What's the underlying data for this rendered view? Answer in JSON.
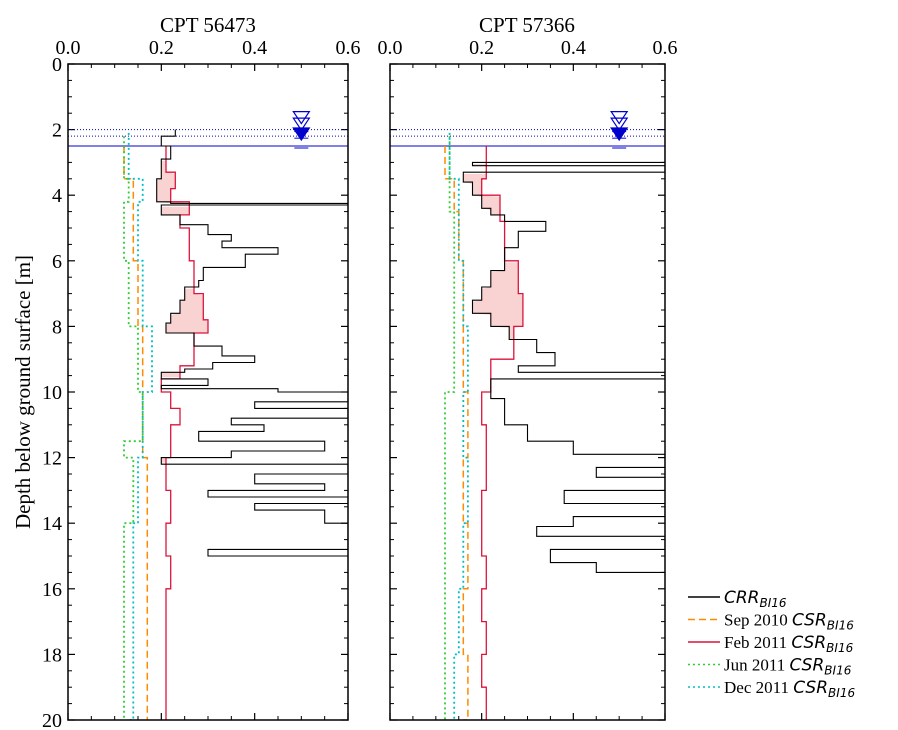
{
  "chart_data": {
    "type": "line",
    "ylabel": "Depth below ground surface [m]",
    "ylim": [
      20,
      0
    ],
    "xlim": [
      0,
      0.6
    ],
    "x_ticks": [
      "0.0",
      "0.2",
      "0.4",
      "0.6"
    ],
    "y_ticks": [
      "0",
      "2",
      "4",
      "6",
      "8",
      "10",
      "12",
      "14",
      "16",
      "18",
      "20"
    ],
    "legend_position": "bottom-right",
    "colors": {
      "crr": "#000000",
      "sep2010": "#ff8c00",
      "feb2011": "#dc143c",
      "jun2011": "#32cd32",
      "dec2011": "#00bfc4",
      "water_table": "#0000cd",
      "shade": "#f9d2d2"
    },
    "legend": [
      {
        "key": "crr",
        "prefix": "",
        "main": "CRR",
        "sub": "BI16",
        "dash": ""
      },
      {
        "key": "sep2010",
        "prefix": "Sep 2010 ",
        "main": "CSR",
        "sub": "BI16",
        "dash": "7,4"
      },
      {
        "key": "feb2011",
        "prefix": "Feb 2011 ",
        "main": "CSR",
        "sub": "BI16",
        "dash": ""
      },
      {
        "key": "jun2011",
        "prefix": "Jun 2011 ",
        "main": "CSR",
        "sub": "BI16",
        "dash": "2,3"
      },
      {
        "key": "dec2011",
        "prefix": "Dec 2011 ",
        "main": "CSR",
        "sub": "BI16",
        "dash": "2,3"
      }
    ],
    "panels": [
      {
        "title": "CPT 56473",
        "water_tables": [
          2.0,
          2.2,
          2.5
        ],
        "series": {
          "crr": [
            [
              0.23,
              2.0
            ],
            [
              0.2,
              2.2
            ],
            [
              0.22,
              2.5
            ],
            [
              0.2,
              2.9
            ],
            [
              0.19,
              3.5
            ],
            [
              0.19,
              4.0
            ],
            [
              0.22,
              4.2
            ],
            [
              0.6,
              4.25
            ],
            [
              0.2,
              4.3
            ],
            [
              0.24,
              4.6
            ],
            [
              0.3,
              4.9
            ],
            [
              0.35,
              5.2
            ],
            [
              0.33,
              5.4
            ],
            [
              0.45,
              5.6
            ],
            [
              0.38,
              5.8
            ],
            [
              0.29,
              6.2
            ],
            [
              0.28,
              6.6
            ],
            [
              0.25,
              6.8
            ],
            [
              0.24,
              7.2
            ],
            [
              0.22,
              7.6
            ],
            [
              0.21,
              7.9
            ],
            [
              0.27,
              8.2
            ],
            [
              0.33,
              8.6
            ],
            [
              0.4,
              8.9
            ],
            [
              0.31,
              9.1
            ],
            [
              0.25,
              9.3
            ],
            [
              0.2,
              9.4
            ],
            [
              0.3,
              9.6
            ],
            [
              0.2,
              9.8
            ],
            [
              0.45,
              9.9
            ],
            [
              0.6,
              10.0
            ],
            [
              0.4,
              10.3
            ],
            [
              0.6,
              10.5
            ],
            [
              0.35,
              10.8
            ],
            [
              0.42,
              11.0
            ],
            [
              0.28,
              11.2
            ],
            [
              0.55,
              11.5
            ],
            [
              0.35,
              11.8
            ],
            [
              0.2,
              12.0
            ],
            [
              0.6,
              12.2
            ],
            [
              0.4,
              12.5
            ],
            [
              0.55,
              12.8
            ],
            [
              0.3,
              13.0
            ],
            [
              0.6,
              13.2
            ],
            [
              0.4,
              13.4
            ],
            [
              0.55,
              13.6
            ],
            [
              0.6,
              14.0
            ],
            [
              0.3,
              14.8
            ],
            [
              0.6,
              15.0
            ]
          ],
          "sep2010": [
            [
              0.12,
              2.5
            ],
            [
              0.14,
              3.5
            ],
            [
              0.14,
              4.2
            ],
            [
              0.15,
              6.0
            ],
            [
              0.16,
              8.0
            ],
            [
              0.16,
              10.0
            ],
            [
              0.17,
              12.0
            ],
            [
              0.17,
              14.0
            ],
            [
              0.17,
              16.0
            ],
            [
              0.17,
              18.0
            ],
            [
              0.17,
              20.0
            ]
          ],
          "feb2011": [
            [
              0.21,
              2.5
            ],
            [
              0.23,
              3.3
            ],
            [
              0.22,
              3.8
            ],
            [
              0.26,
              4.2
            ],
            [
              0.24,
              4.6
            ],
            [
              0.26,
              5.0
            ],
            [
              0.27,
              6.0
            ],
            [
              0.29,
              7.0
            ],
            [
              0.3,
              7.8
            ],
            [
              0.27,
              8.2
            ],
            [
              0.24,
              9.2
            ],
            [
              0.2,
              9.6
            ],
            [
              0.22,
              10.0
            ],
            [
              0.24,
              10.5
            ],
            [
              0.22,
              11.0
            ],
            [
              0.21,
              12.0
            ],
            [
              0.22,
              13.0
            ],
            [
              0.21,
              14.0
            ],
            [
              0.22,
              15.0
            ],
            [
              0.21,
              16.0
            ],
            [
              0.21,
              17.0
            ],
            [
              0.21,
              18.0
            ],
            [
              0.21,
              19.0
            ],
            [
              0.21,
              20.0
            ]
          ],
          "jun2011": [
            [
              0.12,
              2.2
            ],
            [
              0.13,
              3.5
            ],
            [
              0.12,
              4.2
            ],
            [
              0.13,
              6.0
            ],
            [
              0.15,
              8.0
            ],
            [
              0.16,
              10.0
            ],
            [
              0.12,
              11.5
            ],
            [
              0.14,
              12.0
            ],
            [
              0.12,
              14.0
            ],
            [
              0.12,
              16.0
            ],
            [
              0.12,
              18.0
            ],
            [
              0.12,
              20.0
            ]
          ],
          "dec2011": [
            [
              0.13,
              2.1
            ],
            [
              0.16,
              3.5
            ],
            [
              0.15,
              4.2
            ],
            [
              0.16,
              6.0
            ],
            [
              0.18,
              8.0
            ],
            [
              0.16,
              10.0
            ],
            [
              0.15,
              12.0
            ],
            [
              0.14,
              14.0
            ],
            [
              0.14,
              16.0
            ],
            [
              0.14,
              18.0
            ],
            [
              0.13,
              20.0
            ]
          ]
        }
      },
      {
        "title": "CPT 57366",
        "water_tables": [
          2.0,
          2.2,
          2.5
        ],
        "series": {
          "crr": [
            [
              0.6,
              2.2
            ],
            [
              0.18,
              3.0
            ],
            [
              0.6,
              3.1
            ],
            [
              0.16,
              3.3
            ],
            [
              0.18,
              3.6
            ],
            [
              0.2,
              4.0
            ],
            [
              0.22,
              4.4
            ],
            [
              0.25,
              4.6
            ],
            [
              0.34,
              4.8
            ],
            [
              0.28,
              5.1
            ],
            [
              0.25,
              5.6
            ],
            [
              0.22,
              6.3
            ],
            [
              0.2,
              6.8
            ],
            [
              0.18,
              7.2
            ],
            [
              0.22,
              7.6
            ],
            [
              0.26,
              8.0
            ],
            [
              0.32,
              8.4
            ],
            [
              0.36,
              8.8
            ],
            [
              0.28,
              9.2
            ],
            [
              0.6,
              9.4
            ],
            [
              0.22,
              9.6
            ],
            [
              0.25,
              10.2
            ],
            [
              0.3,
              11.0
            ],
            [
              0.4,
              11.5
            ],
            [
              0.6,
              11.9
            ],
            [
              0.45,
              12.3
            ],
            [
              0.6,
              12.6
            ],
            [
              0.38,
              13.0
            ],
            [
              0.6,
              13.4
            ],
            [
              0.4,
              13.8
            ],
            [
              0.32,
              14.1
            ],
            [
              0.6,
              14.4
            ],
            [
              0.35,
              14.8
            ],
            [
              0.45,
              15.2
            ],
            [
              0.6,
              15.5
            ]
          ],
          "sep2010": [
            [
              0.12,
              2.5
            ],
            [
              0.14,
              3.5
            ],
            [
              0.15,
              4.5
            ],
            [
              0.16,
              6.0
            ],
            [
              0.16,
              8.0
            ],
            [
              0.17,
              10.0
            ],
            [
              0.16,
              12.0
            ],
            [
              0.17,
              14.0
            ],
            [
              0.16,
              16.0
            ],
            [
              0.17,
              18.0
            ],
            [
              0.16,
              20.0
            ]
          ],
          "feb2011": [
            [
              0.21,
              2.5
            ],
            [
              0.2,
              3.5
            ],
            [
              0.24,
              4.0
            ],
            [
              0.25,
              4.8
            ],
            [
              0.28,
              6.0
            ],
            [
              0.29,
              7.0
            ],
            [
              0.27,
              8.0
            ],
            [
              0.22,
              9.0
            ],
            [
              0.2,
              10.0
            ],
            [
              0.21,
              11.0
            ],
            [
              0.21,
              12.0
            ],
            [
              0.2,
              13.0
            ],
            [
              0.2,
              14.0
            ],
            [
              0.21,
              15.0
            ],
            [
              0.2,
              16.0
            ],
            [
              0.21,
              17.0
            ],
            [
              0.2,
              18.0
            ],
            [
              0.21,
              19.0
            ],
            [
              0.2,
              20.0
            ]
          ],
          "jun2011": [
            [
              0.13,
              2.2
            ],
            [
              0.13,
              3.5
            ],
            [
              0.14,
              4.5
            ],
            [
              0.14,
              6.0
            ],
            [
              0.14,
              8.0
            ],
            [
              0.12,
              10.0
            ],
            [
              0.12,
              12.0
            ],
            [
              0.12,
              14.0
            ],
            [
              0.12,
              16.0
            ],
            [
              0.12,
              18.0
            ],
            [
              0.12,
              20.0
            ]
          ],
          "dec2011": [
            [
              0.13,
              2.1
            ],
            [
              0.15,
              3.5
            ],
            [
              0.15,
              4.5
            ],
            [
              0.16,
              6.0
            ],
            [
              0.17,
              8.0
            ],
            [
              0.16,
              10.0
            ],
            [
              0.17,
              12.0
            ],
            [
              0.16,
              14.0
            ],
            [
              0.15,
              16.0
            ],
            [
              0.14,
              18.0
            ],
            [
              0.14,
              20.0
            ]
          ]
        }
      }
    ]
  }
}
